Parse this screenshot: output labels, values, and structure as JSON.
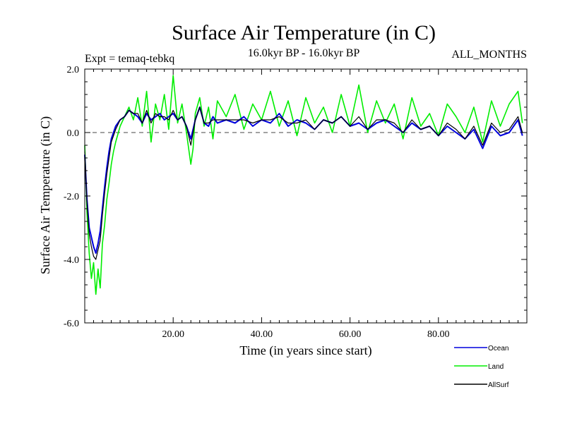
{
  "chart_data": {
    "type": "line",
    "title": "Surface Air Temperature (in C)",
    "subtitle": "16.0kyr BP - 16.0kyr BP",
    "experiment": "Expt = temaq-tebkq",
    "months": "ALL_MONTHS",
    "xlabel": "Time (in years since start)",
    "ylabel": "Surface Air Temperature (in C)",
    "xlim": [
      0,
      100
    ],
    "ylim": [
      -6.0,
      2.0
    ],
    "xticks": [
      20,
      40,
      60,
      80
    ],
    "xtick_labels": [
      "20.00",
      "40.00",
      "60.00",
      "80.00"
    ],
    "yticks": [
      -6,
      -4,
      -2,
      0,
      2
    ],
    "ytick_labels": [
      "-6.0",
      "-4.0",
      "-2.0",
      "0.0",
      "2.0"
    ],
    "zero_line": "dashed",
    "grid": false,
    "legend": "bottom-right",
    "series": [
      {
        "name": "Land",
        "color": "#00ee00",
        "x": [
          0,
          0.5,
          1,
          1.5,
          2,
          2.5,
          3,
          3.5,
          4,
          4.5,
          5,
          5.5,
          6,
          6.5,
          7,
          8,
          9,
          10,
          11,
          12,
          13,
          14,
          15,
          16,
          17,
          18,
          19,
          20,
          21,
          22,
          23,
          24,
          24.5,
          25,
          26,
          27,
          28,
          29,
          30,
          32,
          34,
          36,
          38,
          40,
          42,
          44,
          46,
          48,
          50,
          52,
          54,
          56,
          58,
          60,
          62,
          64,
          66,
          68,
          70,
          72,
          74,
          76,
          78,
          80,
          82,
          84,
          86,
          88,
          90,
          92,
          94,
          96,
          98,
          99
        ],
        "values": [
          -0.4,
          -2.5,
          -3.8,
          -4.6,
          -4.1,
          -5.1,
          -4.3,
          -4.9,
          -3.5,
          -2.9,
          -2.1,
          -1.6,
          -1.0,
          -0.6,
          -0.3,
          0.2,
          0.5,
          0.8,
          0.4,
          1.1,
          0.2,
          1.3,
          -0.3,
          0.9,
          0.4,
          1.2,
          0.1,
          1.8,
          0.3,
          0.9,
          0.0,
          -1.0,
          -0.5,
          0.6,
          1.1,
          0.2,
          0.8,
          -0.2,
          1.0,
          0.5,
          1.2,
          0.1,
          0.9,
          0.4,
          1.3,
          0.2,
          1.0,
          -0.1,
          1.1,
          0.3,
          0.8,
          0.0,
          1.2,
          0.2,
          1.5,
          0.0,
          1.0,
          0.3,
          0.9,
          -0.2,
          1.1,
          0.2,
          0.6,
          -0.1,
          0.9,
          0.5,
          0.0,
          0.8,
          -0.3,
          1.0,
          0.2,
          0.9,
          1.3,
          0.3
        ]
      },
      {
        "name": "Ocean",
        "color": "#0000dd",
        "x": [
          0,
          0.5,
          1,
          1.5,
          2,
          2.5,
          3,
          3.5,
          4,
          4.5,
          5,
          5.5,
          6,
          6.5,
          7,
          8,
          9,
          10,
          11,
          12,
          13,
          14,
          15,
          16,
          17,
          18,
          19,
          20,
          21,
          22,
          23,
          24,
          24.5,
          25,
          26,
          27,
          28,
          29,
          30,
          32,
          34,
          36,
          38,
          40,
          42,
          44,
          46,
          48,
          50,
          52,
          54,
          56,
          58,
          60,
          62,
          64,
          66,
          68,
          70,
          72,
          74,
          76,
          78,
          80,
          82,
          84,
          86,
          88,
          90,
          92,
          94,
          96,
          98,
          99
        ],
        "values": [
          -0.7,
          -2.1,
          -3.0,
          -3.3,
          -3.6,
          -3.8,
          -3.5,
          -3.1,
          -2.4,
          -1.7,
          -1.1,
          -0.6,
          -0.2,
          0.0,
          0.2,
          0.4,
          0.5,
          0.7,
          0.6,
          0.5,
          0.3,
          0.6,
          0.4,
          0.5,
          0.6,
          0.4,
          0.5,
          0.6,
          0.4,
          0.5,
          0.2,
          -0.2,
          0.1,
          0.4,
          0.8,
          0.3,
          0.2,
          0.5,
          0.3,
          0.4,
          0.3,
          0.5,
          0.2,
          0.4,
          0.3,
          0.6,
          0.2,
          0.4,
          0.3,
          0.1,
          0.4,
          0.3,
          0.5,
          0.2,
          0.3,
          0.1,
          0.3,
          0.4,
          0.2,
          0.0,
          0.3,
          0.1,
          0.2,
          -0.1,
          0.2,
          0.0,
          -0.2,
          0.1,
          -0.5,
          0.2,
          -0.1,
          0.0,
          0.4,
          -0.1
        ]
      },
      {
        "name": "AllSurf",
        "color": "#000000",
        "x": [
          0,
          0.5,
          1,
          1.5,
          2,
          2.5,
          3,
          3.5,
          4,
          4.5,
          5,
          5.5,
          6,
          6.5,
          7,
          8,
          9,
          10,
          11,
          12,
          13,
          14,
          15,
          16,
          17,
          18,
          19,
          20,
          21,
          22,
          23,
          24,
          24.5,
          25,
          26,
          27,
          28,
          29,
          30,
          32,
          34,
          36,
          38,
          40,
          42,
          44,
          46,
          48,
          50,
          52,
          54,
          56,
          58,
          60,
          62,
          64,
          66,
          68,
          70,
          72,
          74,
          76,
          78,
          80,
          82,
          84,
          86,
          88,
          90,
          92,
          94,
          96,
          98,
          99
        ],
        "values": [
          -0.6,
          -2.2,
          -3.2,
          -3.6,
          -3.9,
          -4.0,
          -3.7,
          -3.4,
          -2.6,
          -1.9,
          -1.3,
          -0.8,
          -0.3,
          -0.1,
          0.1,
          0.4,
          0.5,
          0.7,
          0.6,
          0.6,
          0.3,
          0.7,
          0.3,
          0.6,
          0.5,
          0.5,
          0.4,
          0.7,
          0.4,
          0.5,
          0.2,
          -0.4,
          0.0,
          0.4,
          0.8,
          0.3,
          0.3,
          0.4,
          0.4,
          0.4,
          0.4,
          0.4,
          0.3,
          0.4,
          0.4,
          0.5,
          0.3,
          0.3,
          0.4,
          0.1,
          0.4,
          0.3,
          0.5,
          0.2,
          0.5,
          0.1,
          0.4,
          0.4,
          0.3,
          0.0,
          0.4,
          0.1,
          0.2,
          -0.1,
          0.3,
          0.1,
          -0.2,
          0.2,
          -0.4,
          0.3,
          0.0,
          0.1,
          0.5,
          0.0
        ]
      }
    ]
  }
}
